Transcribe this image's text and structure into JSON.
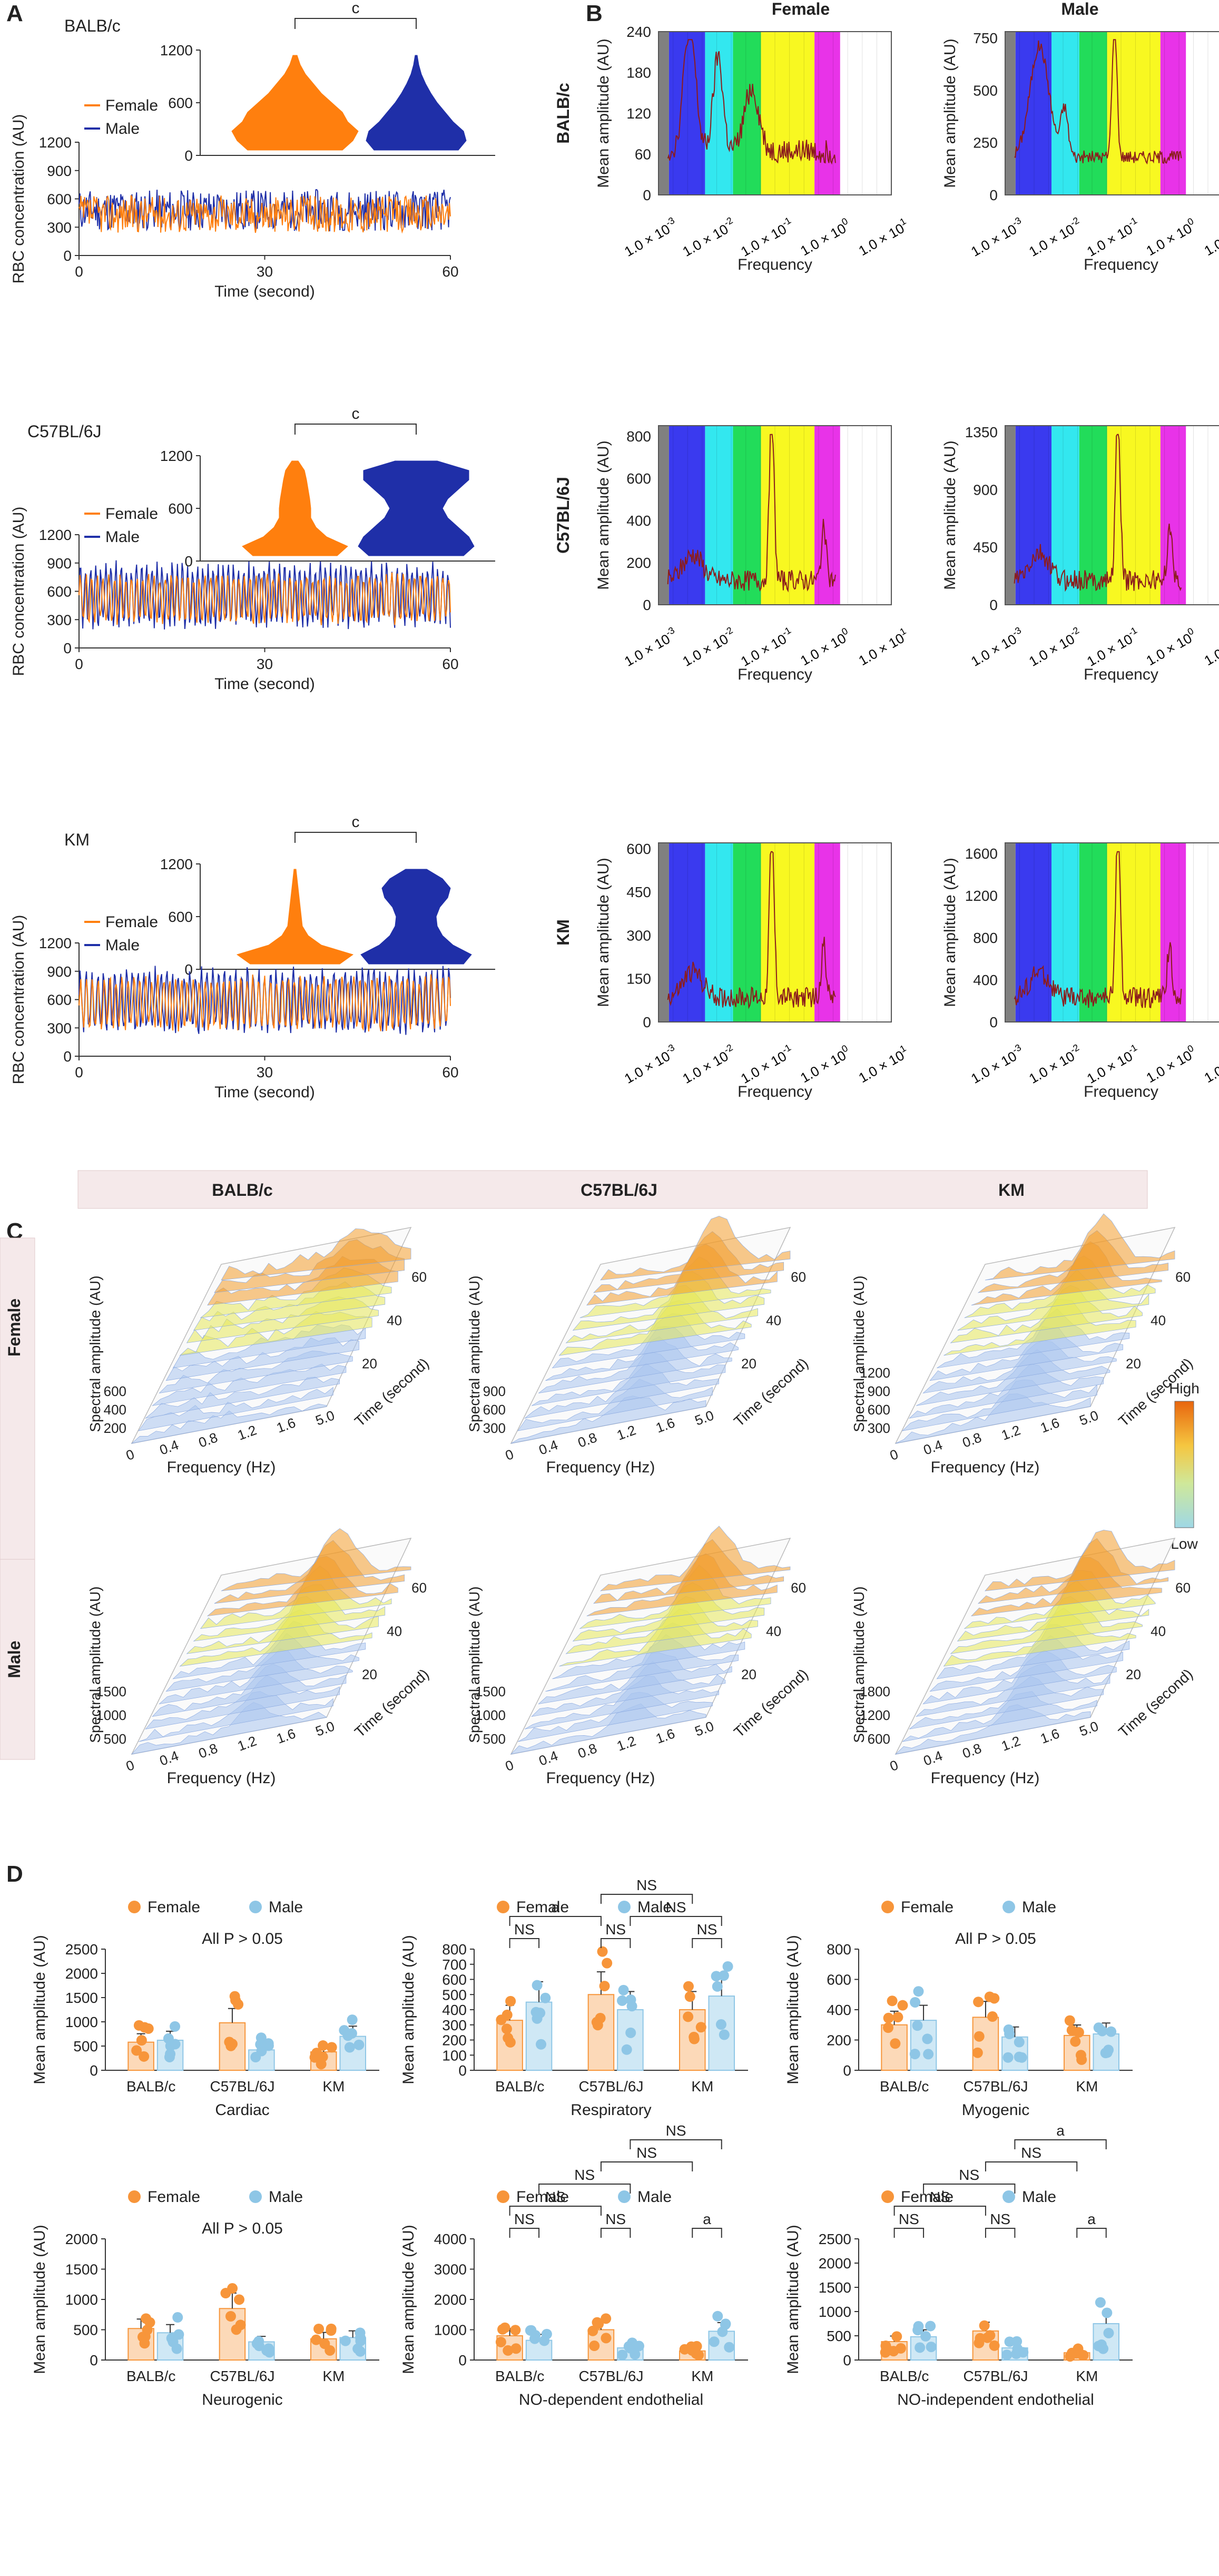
{
  "panel_letters": [
    "A",
    "B",
    "C",
    "D"
  ],
  "colors": {
    "female": "#ff7f0e",
    "male": "#1f2fa8",
    "female_dot": "#f7953a",
    "male_dot": "#8ec6e6",
    "female_bar": "#fcd9b8",
    "male_bar": "#cfe8f5"
  },
  "panelA": {
    "female_label": "Female",
    "male_label": "Male",
    "ylabel": "RBC concentration (AU)",
    "xlabel": "Time (second)",
    "xticks": [
      "0",
      "30",
      "60"
    ],
    "sig_mark": "c",
    "strains": [
      {
        "name": "BALB/c",
        "yticks": [
          "0",
          "300",
          "600",
          "900",
          "1200"
        ],
        "ymax": 1200,
        "violin_yticks": [
          "0",
          "600",
          "1200"
        ],
        "violin_max": 1200
      },
      {
        "name": "C57BL/6J",
        "yticks": [
          "0",
          "300",
          "600",
          "900",
          "1200"
        ],
        "ymax": 1200,
        "violin_yticks": [
          "0",
          "600",
          "1200"
        ],
        "violin_max": 1200
      },
      {
        "name": "KM",
        "yticks": [
          "0",
          "300",
          "600",
          "900",
          "1200"
        ],
        "ymax": 1200,
        "violin_yticks": [
          "0",
          "600",
          "1200"
        ],
        "violin_max": 1200
      }
    ]
  },
  "panelB": {
    "col_titles": [
      "Female",
      "Male"
    ],
    "row_titles": [
      "BALB/c",
      "C57BL/6J",
      "KM"
    ],
    "ylabel": "Mean amplitude (AU)",
    "xlabel": "Frequency",
    "xtick_mantissa": "1.0 × 10",
    "xtick_exponents": [
      "-3",
      "-2",
      "-1",
      "0",
      "1"
    ],
    "plots": [
      {
        "yticks": [
          "0",
          "60",
          "120",
          "180",
          "240"
        ],
        "ymax": 240
      },
      {
        "yticks": [
          "0",
          "250",
          "500",
          "750"
        ],
        "ymax": 780
      },
      {
        "yticks": [
          "0",
          "200",
          "400",
          "600",
          "800"
        ],
        "ymax": 850
      },
      {
        "yticks": [
          "0",
          "450",
          "900",
          "1350"
        ],
        "ymax": 1400
      },
      {
        "yticks": [
          "0",
          "150",
          "300",
          "450",
          "600"
        ],
        "ymax": 620
      },
      {
        "yticks": [
          "0",
          "400",
          "800",
          "1200",
          "1600"
        ],
        "ymax": 1700
      }
    ]
  },
  "panelC": {
    "col_titles": [
      "BALB/c",
      "C57BL/6J",
      "KM"
    ],
    "row_titles": [
      "Female",
      "Male"
    ],
    "zlabel": "Spectral amplitude (AU)",
    "xlabel": "Frequency (Hz)",
    "tlabel": "Time (second)",
    "freq_ticks": [
      "0",
      "0.4",
      "0.8",
      "1.2",
      "1.6",
      "5.0"
    ],
    "time_ticks": [
      "20",
      "40",
      "60"
    ],
    "legend_high": "High",
    "legend_low": "Low",
    "plots": [
      {
        "zticks": [
          "200",
          "400",
          "600"
        ]
      },
      {
        "zticks": [
          "300",
          "600",
          "900"
        ]
      },
      {
        "zticks": [
          "300",
          "600",
          "900",
          "1200"
        ]
      },
      {
        "zticks": [
          "500",
          "1000",
          "1500"
        ]
      },
      {
        "zticks": [
          "500",
          "1000",
          "1500"
        ]
      },
      {
        "zticks": [
          "600",
          "1200",
          "1800"
        ]
      }
    ]
  },
  "chart_data": [
    {
      "type": "bar",
      "title": "Cardiac",
      "ylabel": "Mean amplitude (AU)",
      "categories": [
        "BALB/c",
        "C57BL/6J",
        "KM"
      ],
      "ylim": [
        0,
        2500
      ],
      "yticks": [
        "0",
        "500",
        "1000",
        "1500",
        "2000",
        "2500"
      ],
      "annotation": "All P > 0.05",
      "series": [
        {
          "name": "Female",
          "values": [
            580,
            980,
            380
          ]
        },
        {
          "name": "Male",
          "values": [
            620,
            420,
            700
          ]
        }
      ]
    },
    {
      "type": "bar",
      "title": "Respiratory",
      "ylabel": "Mean amplitude (AU)",
      "categories": [
        "BALB/c",
        "C57BL/6J",
        "KM"
      ],
      "ylim": [
        0,
        800
      ],
      "yticks": [
        "0",
        "100",
        "200",
        "300",
        "400",
        "500",
        "600",
        "700",
        "800"
      ],
      "annotation": "",
      "series": [
        {
          "name": "Female",
          "values": [
            330,
            500,
            400
          ]
        },
        {
          "name": "Male",
          "values": [
            450,
            400,
            490
          ]
        }
      ],
      "brackets": [
        {
          "label": "NS",
          "a": [
            0,
            0
          ],
          "b": [
            0,
            1
          ],
          "level": 0
        },
        {
          "label": "a",
          "a": [
            0,
            0
          ],
          "b": [
            1,
            0
          ],
          "level": 1
        },
        {
          "label": "NS",
          "a": [
            1,
            0
          ],
          "b": [
            1,
            1
          ],
          "level": 0
        },
        {
          "label": "NS",
          "a": [
            1,
            0
          ],
          "b": [
            2,
            0
          ],
          "level": 2
        },
        {
          "label": "NS",
          "a": [
            1,
            1
          ],
          "b": [
            2,
            1
          ],
          "level": 1
        },
        {
          "label": "NS",
          "a": [
            2,
            0
          ],
          "b": [
            2,
            1
          ],
          "level": 0
        }
      ]
    },
    {
      "type": "bar",
      "title": "Myogenic",
      "ylabel": "Mean amplitude (AU)",
      "categories": [
        "BALB/c",
        "C57BL/6J",
        "KM"
      ],
      "ylim": [
        0,
        800
      ],
      "yticks": [
        "0",
        "200",
        "400",
        "600",
        "800"
      ],
      "annotation": "All P > 0.05",
      "series": [
        {
          "name": "Female",
          "values": [
            300,
            350,
            230
          ]
        },
        {
          "name": "Male",
          "values": [
            330,
            220,
            240
          ]
        }
      ]
    },
    {
      "type": "bar",
      "title": "Neurogenic",
      "ylabel": "Mean amplitude (AU)",
      "categories": [
        "BALB/c",
        "C57BL/6J",
        "KM"
      ],
      "ylim": [
        0,
        2000
      ],
      "yticks": [
        "0",
        "500",
        "1000",
        "1500",
        "2000"
      ],
      "annotation": "All P > 0.05",
      "series": [
        {
          "name": "Female",
          "values": [
            520,
            850,
            350
          ]
        },
        {
          "name": "Male",
          "values": [
            450,
            300,
            370
          ]
        }
      ]
    },
    {
      "type": "bar",
      "title": "NO-dependent endothelial",
      "ylabel": "Mean amplitude (AU)",
      "categories": [
        "BALB/c",
        "C57BL/6J",
        "KM"
      ],
      "ylim": [
        0,
        4000
      ],
      "yticks": [
        "0",
        "1000",
        "2000",
        "3000",
        "4000"
      ],
      "annotation": "",
      "series": [
        {
          "name": "Female",
          "values": [
            800,
            1000,
            300
          ]
        },
        {
          "name": "Male",
          "values": [
            650,
            400,
            950
          ]
        }
      ],
      "brackets": [
        {
          "label": "NS",
          "a": [
            0,
            0
          ],
          "b": [
            0,
            1
          ],
          "level": 0
        },
        {
          "label": "NS",
          "a": [
            0,
            0
          ],
          "b": [
            1,
            0
          ],
          "level": 1
        },
        {
          "label": "NS",
          "a": [
            1,
            0
          ],
          "b": [
            1,
            1
          ],
          "level": 0
        },
        {
          "label": "NS",
          "a": [
            0,
            1
          ],
          "b": [
            1,
            1
          ],
          "level": 2
        },
        {
          "label": "NS",
          "a": [
            1,
            0
          ],
          "b": [
            2,
            0
          ],
          "level": 3
        },
        {
          "label": "NS",
          "a": [
            1,
            1
          ],
          "b": [
            2,
            1
          ],
          "level": 4
        },
        {
          "label": "a",
          "a": [
            2,
            0
          ],
          "b": [
            2,
            1
          ],
          "level": 0
        }
      ]
    },
    {
      "type": "bar",
      "title": "NO-independent endothelial",
      "ylabel": "Mean amplitude (AU)",
      "categories": [
        "BALB/c",
        "C57BL/6J",
        "KM"
      ],
      "ylim": [
        0,
        2500
      ],
      "yticks": [
        "0",
        "500",
        "1000",
        "1500",
        "2000",
        "2500"
      ],
      "annotation": "",
      "series": [
        {
          "name": "Female",
          "values": [
            380,
            600,
            150
          ]
        },
        {
          "name": "Male",
          "values": [
            480,
            250,
            750
          ]
        }
      ],
      "brackets": [
        {
          "label": "NS",
          "a": [
            0,
            0
          ],
          "b": [
            0,
            1
          ],
          "level": 0
        },
        {
          "label": "NS",
          "a": [
            0,
            0
          ],
          "b": [
            1,
            0
          ],
          "level": 1
        },
        {
          "label": "NS",
          "a": [
            1,
            0
          ],
          "b": [
            1,
            1
          ],
          "level": 0
        },
        {
          "label": "NS",
          "a": [
            0,
            1
          ],
          "b": [
            1,
            1
          ],
          "level": 2
        },
        {
          "label": "NS",
          "a": [
            1,
            0
          ],
          "b": [
            2,
            0
          ],
          "level": 3
        },
        {
          "label": "a",
          "a": [
            1,
            1
          ],
          "b": [
            2,
            1
          ],
          "level": 4
        },
        {
          "label": "a",
          "a": [
            2,
            0
          ],
          "b": [
            2,
            1
          ],
          "level": 0
        }
      ]
    }
  ]
}
